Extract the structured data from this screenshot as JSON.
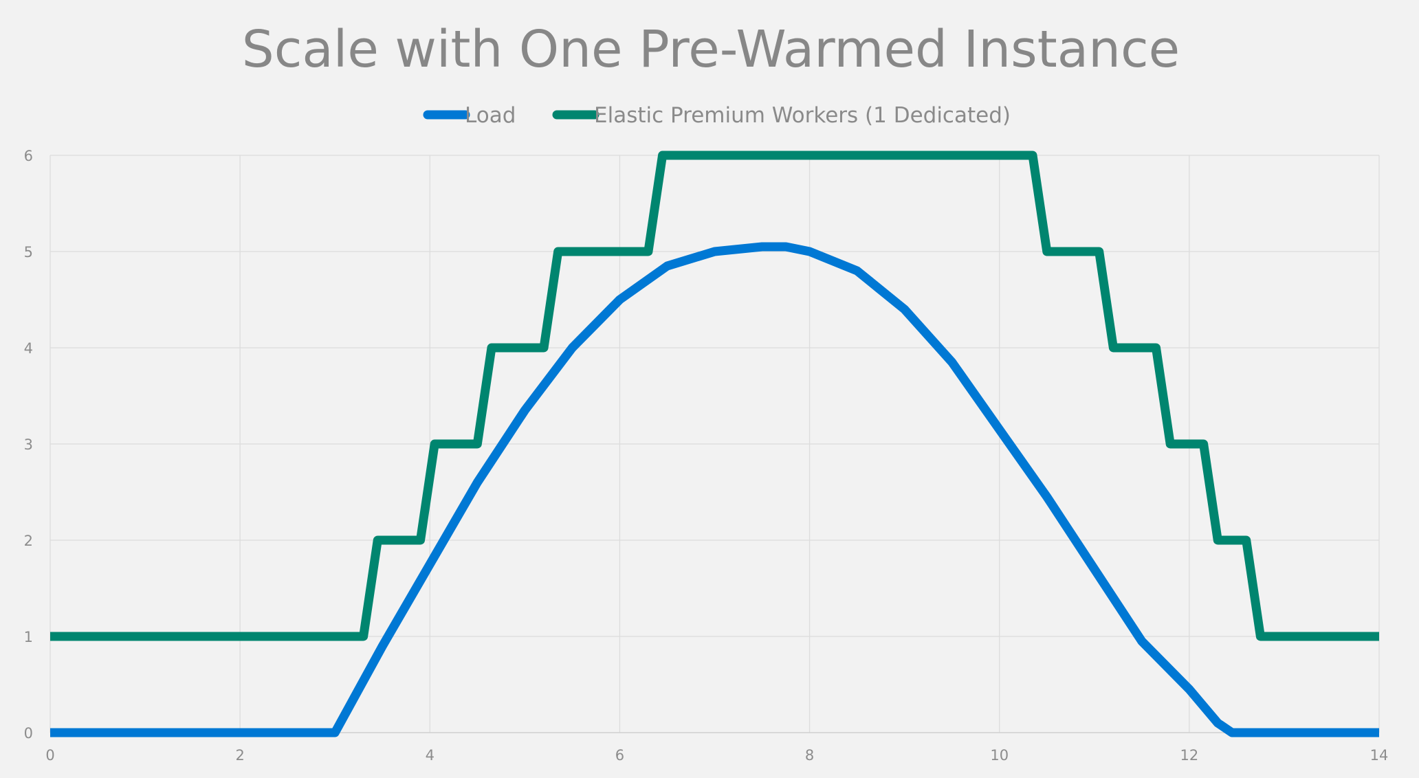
{
  "chart_data": {
    "type": "line",
    "title": "Scale with One Pre-Warmed Instance",
    "xlabel": "",
    "ylabel": "",
    "xlim": [
      0,
      14
    ],
    "ylim": [
      0,
      6
    ],
    "x_ticks": [
      0,
      2,
      4,
      6,
      8,
      10,
      12,
      14
    ],
    "y_ticks": [
      0,
      1,
      2,
      3,
      4,
      5,
      6
    ],
    "grid": true,
    "legend_position": "top",
    "series": [
      {
        "name": "Load",
        "color": "#0078d4",
        "x": [
          0,
          3.0,
          3.5,
          4.0,
          4.5,
          5.0,
          5.5,
          6.0,
          6.5,
          7.0,
          7.5,
          7.75,
          8.0,
          8.5,
          9.0,
          9.5,
          10.0,
          10.5,
          11.0,
          11.5,
          12.0,
          12.3,
          12.45,
          14
        ],
        "y": [
          0,
          0,
          0.9,
          1.75,
          2.6,
          3.35,
          4.0,
          4.5,
          4.85,
          5.0,
          5.05,
          5.05,
          5.0,
          4.8,
          4.4,
          3.85,
          3.15,
          2.45,
          1.7,
          0.95,
          0.45,
          0.1,
          0,
          0
        ]
      },
      {
        "name": "Elastic Premium Workers (1 Dedicated)",
        "color": "#00856f",
        "x": [
          0,
          3.3,
          3.45,
          3.9,
          4.05,
          4.5,
          4.65,
          5.2,
          5.35,
          6.3,
          6.45,
          10.35,
          10.5,
          11.05,
          11.2,
          11.65,
          11.8,
          12.15,
          12.3,
          12.6,
          12.75,
          14
        ],
        "y": [
          1,
          1,
          2,
          2,
          3,
          3,
          4,
          4,
          5,
          5,
          6,
          6,
          5,
          5,
          4,
          4,
          3,
          3,
          2,
          2,
          1,
          1
        ]
      }
    ]
  }
}
